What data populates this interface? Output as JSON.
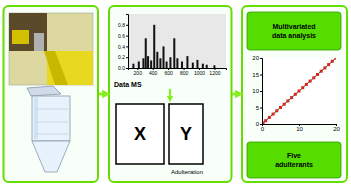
{
  "chart_data": [
    {
      "type": "bar",
      "x": [
        150,
        220,
        280,
        310,
        340,
        380,
        420,
        460,
        500,
        540,
        580,
        630,
        680,
        720,
        780,
        850,
        920,
        980,
        1050,
        1100,
        1200
      ],
      "values": [
        0.08,
        0.12,
        0.18,
        0.55,
        0.22,
        0.14,
        0.8,
        0.3,
        0.18,
        0.4,
        0.12,
        0.2,
        0.55,
        0.18,
        0.12,
        0.22,
        0.1,
        0.15,
        0.08,
        0.06,
        0.05
      ],
      "color": "#111111",
      "xlim": [
        80,
        1350
      ],
      "ylim": [
        0,
        1.0
      ],
      "xticks": [
        200,
        400,
        600,
        800,
        1000,
        1200
      ],
      "yticks": [
        {
          "value": 0,
          "label": "0.0"
        },
        0.2,
        0.4,
        0.6,
        0.8
      ],
      "annotations": [
        "Data MS",
        "X",
        "Y",
        "Adulteration"
      ]
    },
    {
      "type": "scatter",
      "series": [
        {
          "type": "line",
          "color": "#006600",
          "x": [
            0,
            20
          ],
          "values": [
            0,
            20
          ]
        },
        {
          "type": "scatter",
          "color": "#dd2222",
          "marker": "square",
          "x": [
            0.3,
            1,
            2,
            3,
            4,
            5,
            6,
            7,
            8,
            9,
            10,
            11,
            12,
            13,
            14,
            15,
            16,
            17,
            18,
            19,
            20
          ],
          "values": [
            0.3,
            1,
            2,
            3,
            4,
            5,
            6,
            7,
            8,
            9,
            10,
            11,
            12,
            13,
            14,
            15,
            16,
            17,
            18,
            19,
            20
          ]
        }
      ],
      "xlim": [
        0,
        20
      ],
      "ylim": [
        0,
        20
      ],
      "xticks": [
        0,
        10,
        20
      ],
      "yticks": [
        0,
        5,
        10,
        15,
        20
      ],
      "annotations": [
        "Multivariated\ndata analysis",
        "Five\nadulterants"
      ]
    }
  ]
}
